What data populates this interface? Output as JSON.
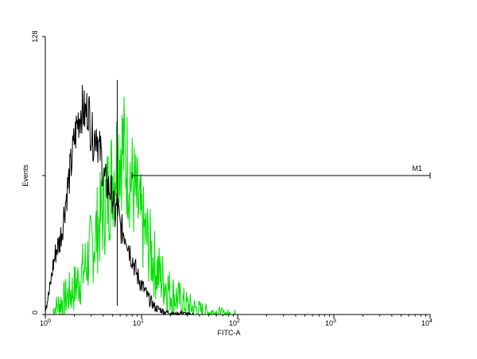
{
  "chart_data": {
    "type": "line",
    "title": "",
    "xlabel": "FITC-A",
    "ylabel": "Events",
    "x_scale": "log",
    "xlim": [
      1,
      10000
    ],
    "ylim": [
      0,
      128
    ],
    "x_ticks": [
      {
        "value": 1,
        "base": "10",
        "exp": "0"
      },
      {
        "value": 10,
        "base": "10",
        "exp": "1"
      },
      {
        "value": 100,
        "base": "10",
        "exp": "2"
      },
      {
        "value": 1000,
        "base": "10",
        "exp": "3"
      },
      {
        "value": 10000,
        "base": "10",
        "exp": "4"
      }
    ],
    "y_ticks": [
      {
        "value": 0,
        "label": "0"
      },
      {
        "value": 128,
        "label": "128"
      }
    ],
    "grid": false,
    "colors": {
      "control": "#000000",
      "sample": "#00e000",
      "axis": "#000000",
      "background": "#ffffff"
    },
    "series": [
      {
        "id": "control",
        "x": [
          1.0,
          1.1,
          1.2,
          1.3,
          1.4,
          1.5,
          1.6,
          1.7,
          1.8,
          1.9,
          2.0,
          2.2,
          2.4,
          2.6,
          2.8,
          3.0,
          3.2,
          3.4,
          3.6,
          3.8,
          4.0,
          4.3,
          4.6,
          5.0,
          5.3,
          5.6,
          6.0,
          6.5,
          7.0,
          7.5,
          8.0,
          8.5,
          9.0,
          10,
          11,
          12,
          13,
          14,
          16,
          18,
          20,
          23,
          26,
          30,
          35
        ],
        "y": [
          3,
          10,
          22,
          30,
          33,
          40,
          50,
          58,
          65,
          72,
          80,
          90,
          95,
          92,
          96,
          84,
          80,
          86,
          76,
          74,
          64,
          60,
          58,
          55,
          45,
          52,
          40,
          38,
          36,
          30,
          26,
          22,
          18,
          14,
          10,
          7,
          5,
          3,
          2,
          1,
          1,
          0,
          1,
          0,
          0
        ]
      },
      {
        "id": "sample",
        "x": [
          1.2,
          1.5,
          2.0,
          2.5,
          3.0,
          3.5,
          4.0,
          4.5,
          5.0,
          5.5,
          6.0,
          6.5,
          7.0,
          7.5,
          8.0,
          8.5,
          9.0,
          10,
          11,
          12,
          13,
          14,
          16,
          18,
          20,
          23,
          26,
          30,
          35,
          40,
          50,
          60,
          80,
          100
        ],
        "y": [
          2,
          6,
          12,
          20,
          30,
          40,
          48,
          56,
          64,
          72,
          78,
          76,
          70,
          66,
          60,
          56,
          50,
          42,
          36,
          32,
          26,
          22,
          17,
          14,
          10,
          8,
          6,
          4,
          3,
          2,
          1,
          1,
          0,
          0
        ]
      }
    ],
    "markers": [
      {
        "label": "M1",
        "x_start": 8,
        "x_end": 10000,
        "y": 64
      }
    ]
  }
}
